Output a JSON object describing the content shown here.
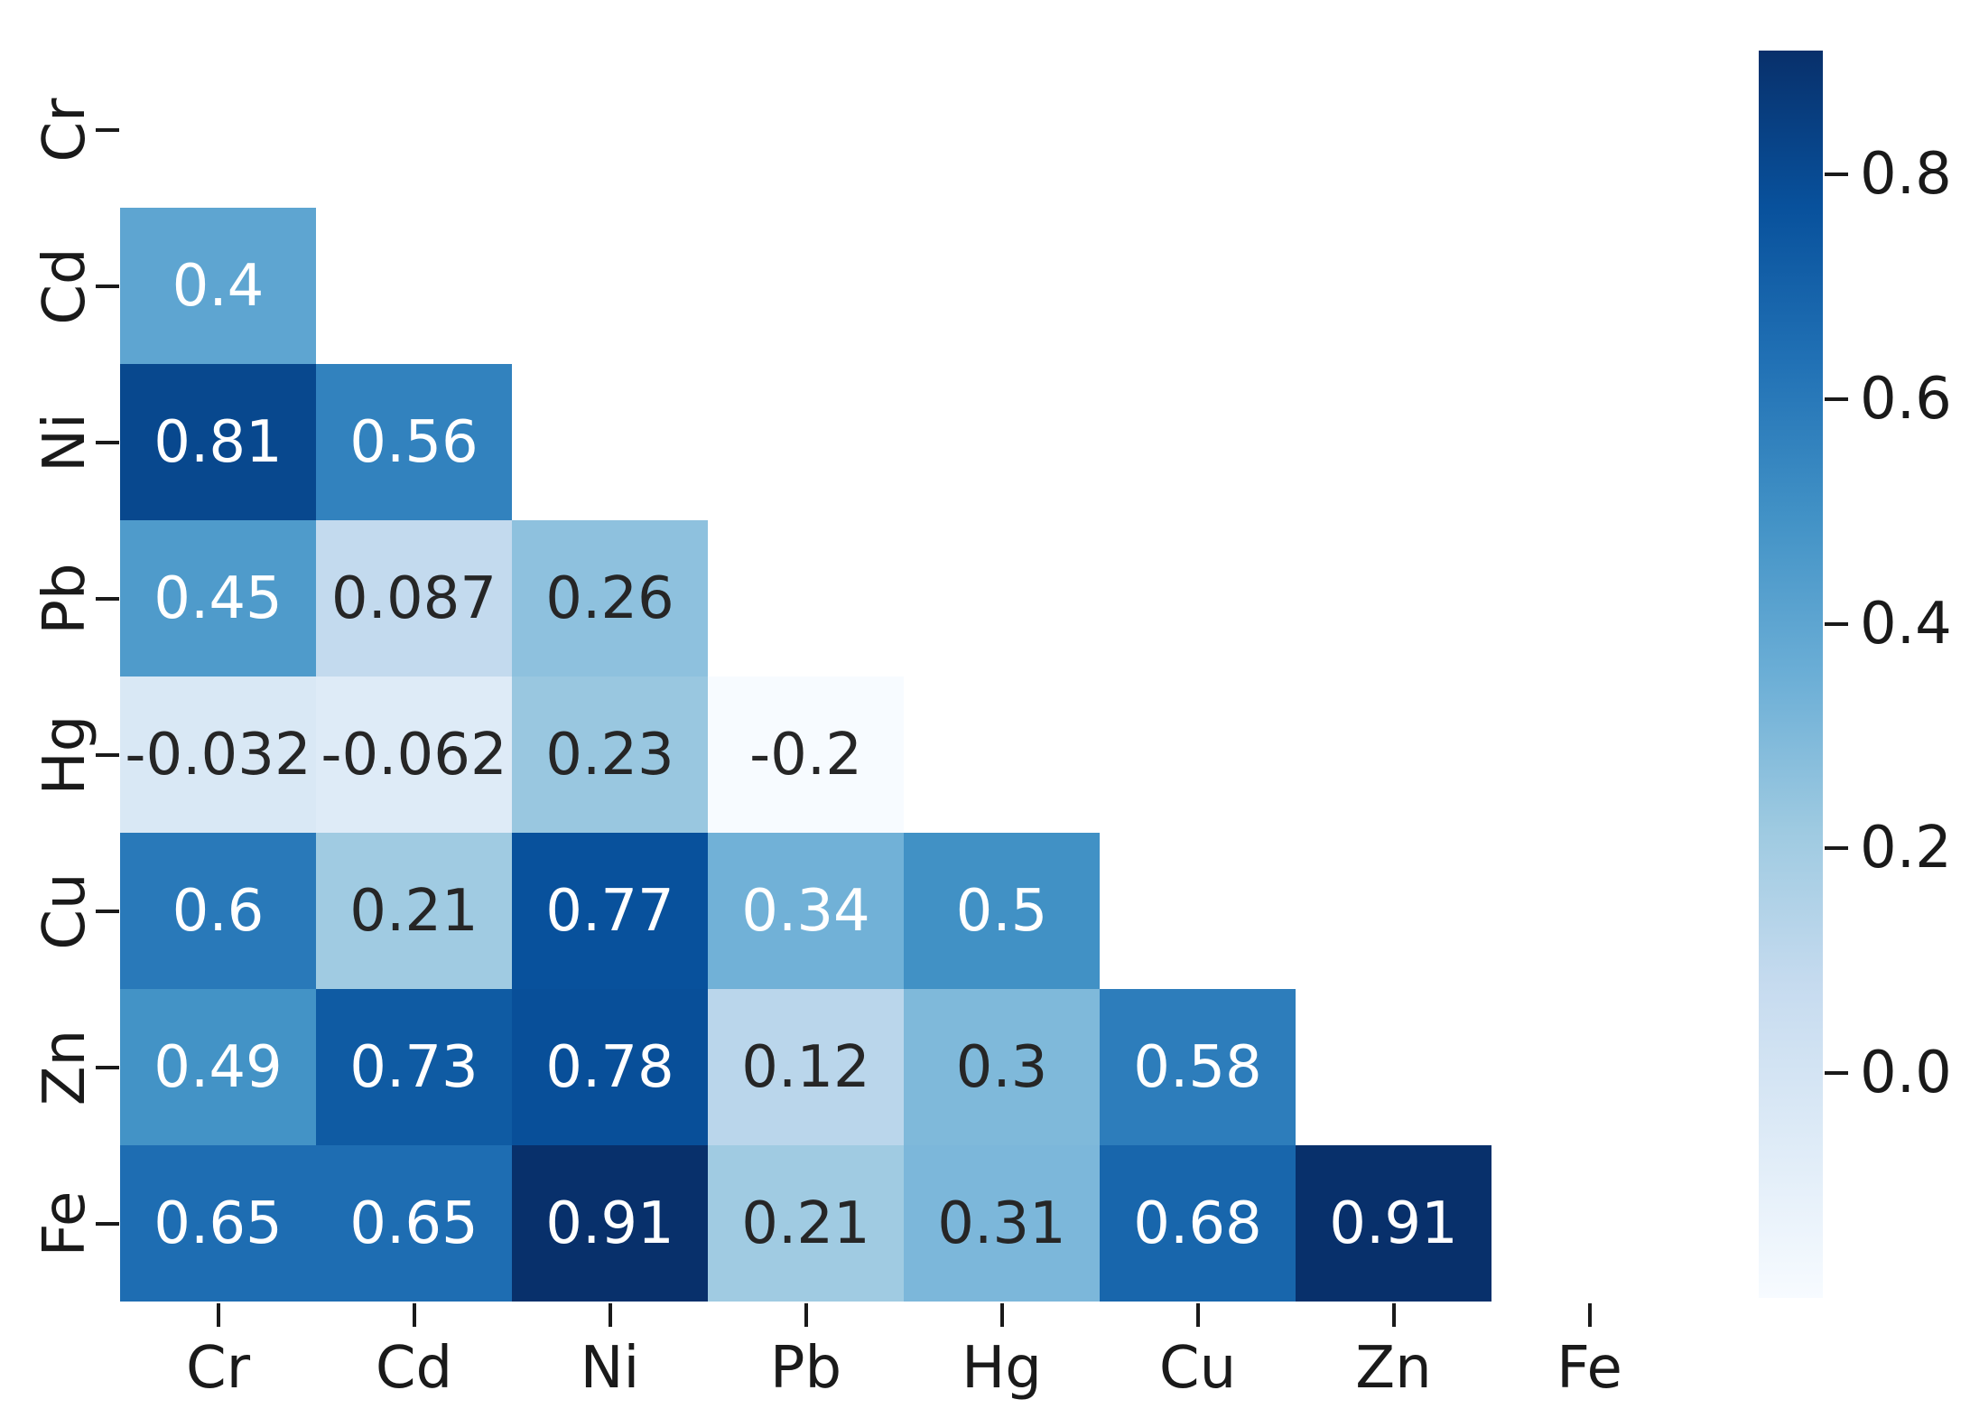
{
  "figure": {
    "background": "#ffffff",
    "title": ""
  },
  "chart_data": {
    "type": "heatmap",
    "subtype": "correlation-matrix-lower-triangle",
    "mask": "upper-triangle-including-diagonal",
    "x_tick_labels": [
      "Cr",
      "Cd",
      "Ni",
      "Pb",
      "Hg",
      "Cu",
      "Zn",
      "Fe"
    ],
    "y_tick_labels": [
      "Cr",
      "Cd",
      "Ni",
      "Pb",
      "Hg",
      "Cu",
      "Zn",
      "Fe"
    ],
    "cells": [
      {
        "row": "Cd",
        "col": "Cr",
        "value": 0.4,
        "label": "0.4"
      },
      {
        "row": "Ni",
        "col": "Cr",
        "value": 0.81,
        "label": "0.81"
      },
      {
        "row": "Ni",
        "col": "Cd",
        "value": 0.56,
        "label": "0.56"
      },
      {
        "row": "Pb",
        "col": "Cr",
        "value": 0.45,
        "label": "0.45"
      },
      {
        "row": "Pb",
        "col": "Cd",
        "value": 0.087,
        "label": "0.087"
      },
      {
        "row": "Pb",
        "col": "Ni",
        "value": 0.26,
        "label": "0.26"
      },
      {
        "row": "Hg",
        "col": "Cr",
        "value": -0.032,
        "label": "-0.032"
      },
      {
        "row": "Hg",
        "col": "Cd",
        "value": -0.062,
        "label": "-0.062"
      },
      {
        "row": "Hg",
        "col": "Ni",
        "value": 0.23,
        "label": "0.23"
      },
      {
        "row": "Hg",
        "col": "Pb",
        "value": -0.2,
        "label": "-0.2"
      },
      {
        "row": "Cu",
        "col": "Cr",
        "value": 0.6,
        "label": "0.6"
      },
      {
        "row": "Cu",
        "col": "Cd",
        "value": 0.21,
        "label": "0.21"
      },
      {
        "row": "Cu",
        "col": "Ni",
        "value": 0.77,
        "label": "0.77"
      },
      {
        "row": "Cu",
        "col": "Pb",
        "value": 0.34,
        "label": "0.34"
      },
      {
        "row": "Cu",
        "col": "Hg",
        "value": 0.5,
        "label": "0.5"
      },
      {
        "row": "Zn",
        "col": "Cr",
        "value": 0.49,
        "label": "0.49"
      },
      {
        "row": "Zn",
        "col": "Cd",
        "value": 0.73,
        "label": "0.73"
      },
      {
        "row": "Zn",
        "col": "Ni",
        "value": 0.78,
        "label": "0.78"
      },
      {
        "row": "Zn",
        "col": "Pb",
        "value": 0.12,
        "label": "0.12"
      },
      {
        "row": "Zn",
        "col": "Hg",
        "value": 0.3,
        "label": "0.3"
      },
      {
        "row": "Zn",
        "col": "Cu",
        "value": 0.58,
        "label": "0.58"
      },
      {
        "row": "Fe",
        "col": "Cr",
        "value": 0.65,
        "label": "0.65"
      },
      {
        "row": "Fe",
        "col": "Cd",
        "value": 0.65,
        "label": "0.65"
      },
      {
        "row": "Fe",
        "col": "Ni",
        "value": 0.91,
        "label": "0.91"
      },
      {
        "row": "Fe",
        "col": "Pb",
        "value": 0.21,
        "label": "0.21"
      },
      {
        "row": "Fe",
        "col": "Hg",
        "value": 0.31,
        "label": "0.31"
      },
      {
        "row": "Fe",
        "col": "Cu",
        "value": 0.68,
        "label": "0.68"
      },
      {
        "row": "Fe",
        "col": "Zn",
        "value": 0.91,
        "label": "0.91"
      }
    ],
    "vmin": -0.2,
    "vmax": 0.91,
    "colormap": {
      "name": "Blues",
      "stops": [
        "#f7fbff",
        "#deebf7",
        "#c6dbef",
        "#9ecae1",
        "#6baed6",
        "#4292c6",
        "#2171b5",
        "#08519c",
        "#08306b"
      ]
    },
    "colorbar": {
      "position": "right",
      "ticks": [
        {
          "value": 0.8,
          "label": "0.8"
        },
        {
          "value": 0.6,
          "label": "0.6"
        },
        {
          "value": 0.4,
          "label": "0.4"
        },
        {
          "value": 0.2,
          "label": "0.2"
        },
        {
          "value": 0.0,
          "label": "0.0"
        }
      ]
    },
    "annotation_colors": {
      "dark_text": "#262626",
      "light_text": "#ffffff"
    },
    "tick_color": "#1a1a1a",
    "grid": "off",
    "axis_spines": "off"
  }
}
